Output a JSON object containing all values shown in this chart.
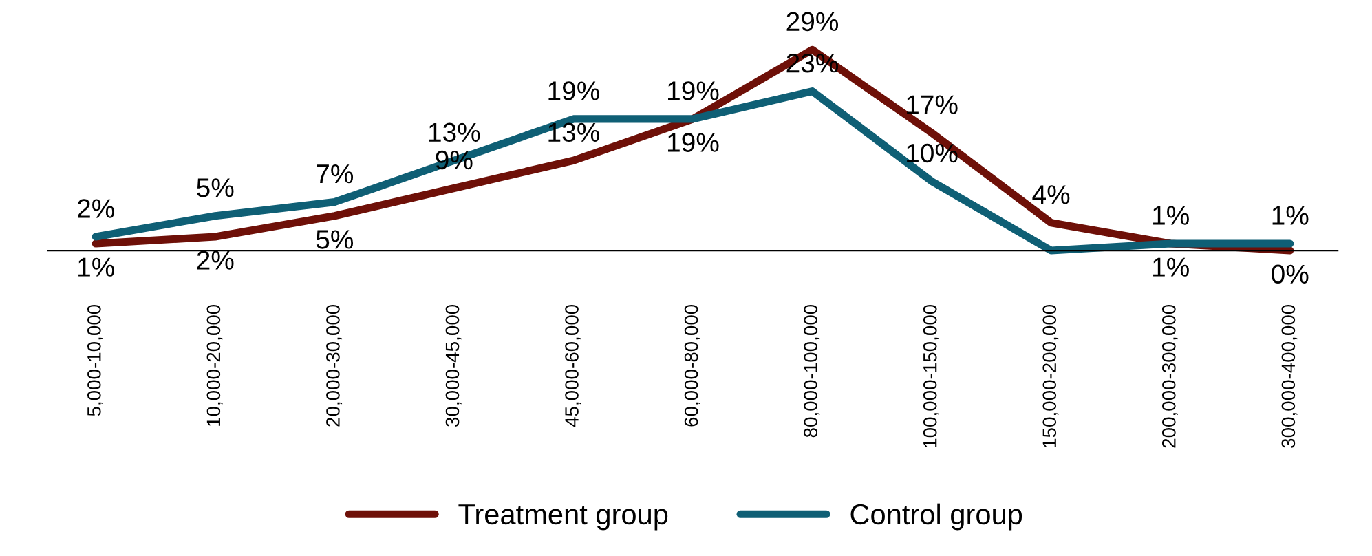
{
  "chart_data": {
    "type": "line",
    "categories": [
      "5,000-10,000",
      "10,000-20,000",
      "20,000-30,000",
      "30,000-45,000",
      "45,000-60,000",
      "60,000-80,000",
      "80,000-100,000",
      "100,000-150,000",
      "150,000-200,000",
      "200,000-300,000",
      "300,000-400,000"
    ],
    "series": [
      {
        "name": "Treatment group",
        "color": "#6e1008",
        "values": [
          1,
          2,
          5,
          9,
          13,
          19,
          29,
          17,
          4,
          1,
          0
        ],
        "value_labels": [
          "1%",
          "2%",
          "5%",
          "9%",
          "13%",
          "19%",
          "29%",
          "17%",
          "4%",
          "1%",
          "0%"
        ]
      },
      {
        "name": "Control group",
        "color": "#0f5f75",
        "values": [
          2,
          5,
          7,
          13,
          19,
          19,
          23,
          10,
          0,
          1,
          1
        ],
        "value_labels": [
          "2%",
          "5%",
          "7%",
          "13%",
          "19%",
          "19%",
          "23%",
          "10%",
          null,
          "1%",
          "1%"
        ]
      }
    ],
    "legend": "bottom",
    "grid": false,
    "marker": "none",
    "line_style": "solid"
  }
}
